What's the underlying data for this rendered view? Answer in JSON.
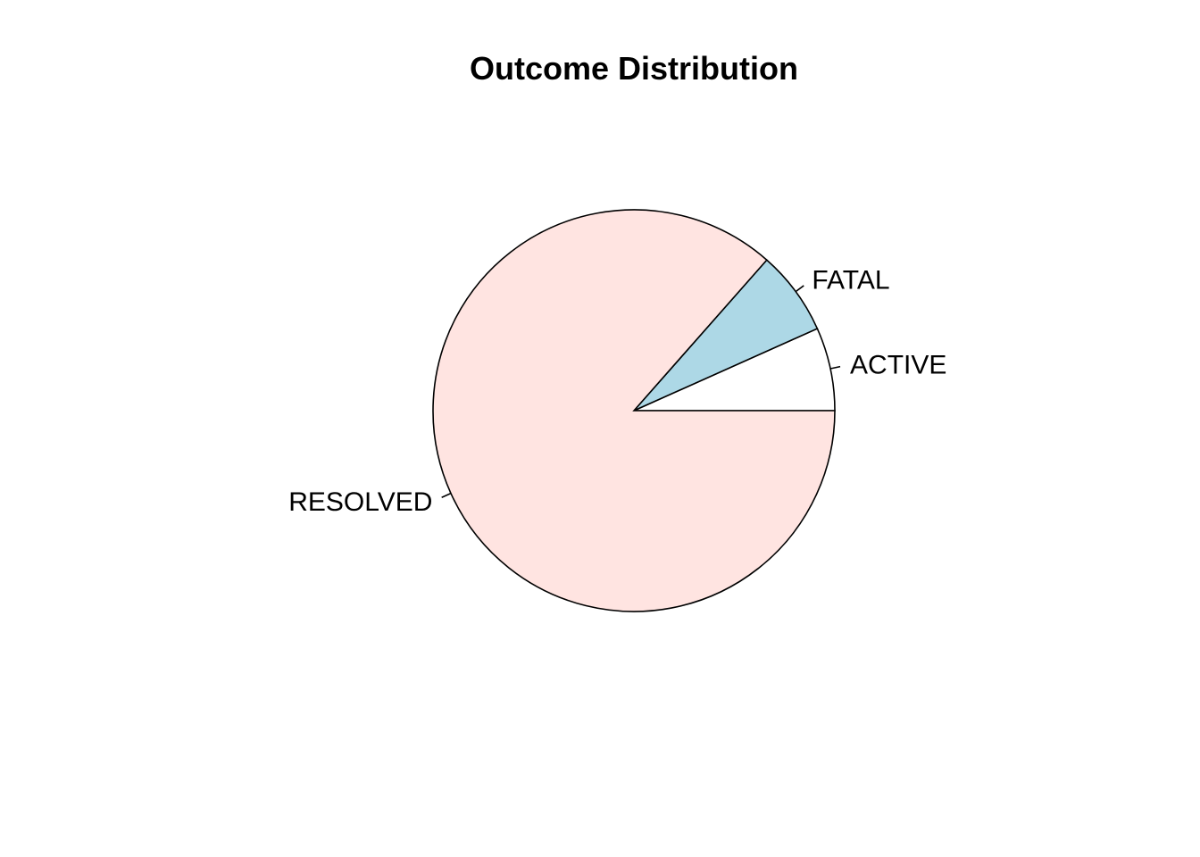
{
  "chart_data": {
    "type": "pie",
    "title": "Outcome Distribution",
    "slices": [
      {
        "label": "ACTIVE",
        "value": 6.7,
        "color": "#ffffff"
      },
      {
        "label": "FATAL",
        "value": 6.8,
        "color": "#add8e6"
      },
      {
        "label": "RESOLVED",
        "value": 86.5,
        "color": "#ffe4e1"
      }
    ],
    "start_angle_deg": 0,
    "direction": "counterclockwise",
    "border_color": "#000000"
  }
}
